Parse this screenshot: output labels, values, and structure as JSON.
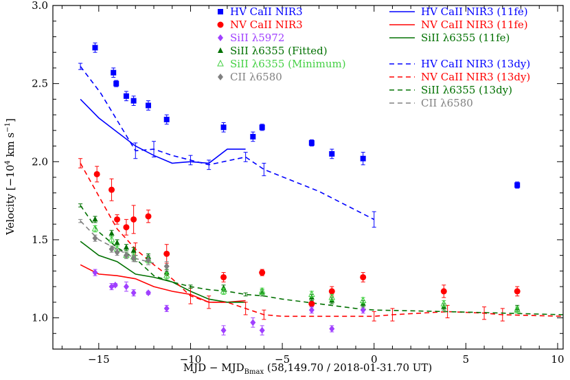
{
  "chart_data": {
    "type": "scatter",
    "xlabel": "MJD − MJD",
    "xlabel_sub": "Bmax",
    "xlabel_tail": " (58,149.70 / 2018-01-31.70 UT)",
    "ylabel": "Velocity [−10",
    "ylabel_sup": "4",
    "ylabel_tail": " km s",
    "ylabel_sup2": "−1",
    "ylabel_close": "]",
    "xlim": [
      -17.5,
      10.3
    ],
    "ylim": [
      0.8,
      3.0
    ],
    "xticks": [
      -15,
      -10,
      -5,
      0,
      5,
      10
    ],
    "xtick_labels": [
      "−15",
      "−10",
      "−5",
      "0",
      "5",
      "10"
    ],
    "yticks": [
      1.0,
      1.5,
      2.0,
      2.5,
      3.0
    ],
    "ytick_labels": [
      "1.0",
      "1.5",
      "2.0",
      "2.5",
      "3.0"
    ],
    "grid": false,
    "legend_placement": "top",
    "points": [
      {
        "name": "HV CaII NIR3",
        "legend": "HV CaII NIR3",
        "color": "#0000ff",
        "marker": "square",
        "data": [
          [
            -15.2,
            2.73,
            0.03
          ],
          [
            -14.2,
            2.57,
            0.03
          ],
          [
            -14.05,
            2.5,
            0.02
          ],
          [
            -13.5,
            2.42,
            0.03
          ],
          [
            -13.1,
            2.39,
            0.03
          ],
          [
            -12.3,
            2.36,
            0.03
          ],
          [
            -11.3,
            2.27,
            0.03
          ],
          [
            -8.2,
            2.22,
            0.03
          ],
          [
            -6.6,
            2.16,
            0.03
          ],
          [
            -6.1,
            2.22,
            0.02
          ],
          [
            -3.4,
            2.12,
            0.02
          ],
          [
            -2.3,
            2.05,
            0.03
          ],
          [
            -0.6,
            2.02,
            0.04
          ],
          [
            7.8,
            1.85,
            0.02
          ]
        ]
      },
      {
        "name": "NV CaII NIR3",
        "legend": "NV CaII NIR3",
        "color": "#ff0000",
        "marker": "circle",
        "data": [
          [
            -15.1,
            1.92,
            0.05
          ],
          [
            -14.3,
            1.82,
            0.07
          ],
          [
            -14.0,
            1.63,
            0.03
          ],
          [
            -13.5,
            1.58,
            0.05
          ],
          [
            -13.1,
            1.63,
            0.09
          ],
          [
            -12.3,
            1.65,
            0.04
          ],
          [
            -11.3,
            1.41,
            0.06
          ],
          [
            -8.2,
            1.26,
            0.03
          ],
          [
            -6.1,
            1.29,
            0.02
          ],
          [
            -3.4,
            1.09,
            0.02
          ],
          [
            -2.3,
            1.17,
            0.03
          ],
          [
            -0.6,
            1.26,
            0.03
          ],
          [
            3.8,
            1.17,
            0.04
          ],
          [
            7.8,
            1.17,
            0.03
          ]
        ]
      },
      {
        "name": "SiII λ5972",
        "legend": "SiII λ5972",
        "color": "#a040ff",
        "marker": "diamond",
        "data": [
          [
            -15.2,
            1.29,
            0.02
          ],
          [
            -14.3,
            1.2,
            0.02
          ],
          [
            -14.1,
            1.21,
            0.01
          ],
          [
            -13.5,
            1.2,
            0.03
          ],
          [
            -13.1,
            1.16,
            0.02
          ],
          [
            -12.3,
            1.16,
            0.01
          ],
          [
            -11.3,
            1.06,
            0.02
          ],
          [
            -8.2,
            0.92,
            0.03
          ],
          [
            -6.6,
            0.97,
            0.03
          ],
          [
            -6.1,
            0.92,
            0.03
          ],
          [
            -3.4,
            1.05,
            0.02
          ],
          [
            -2.3,
            0.93,
            0.02
          ],
          [
            -0.6,
            1.05,
            0.02
          ]
        ]
      },
      {
        "name": "SiII λ6355 (Fitted)",
        "legend": "SiII λ6355 (Fitted)",
        "color": "#007000",
        "marker": "triangle",
        "data": [
          [
            -15.2,
            1.63,
            0.02
          ],
          [
            -14.3,
            1.54,
            0.02
          ],
          [
            -14.0,
            1.48,
            0.02
          ],
          [
            -13.5,
            1.45,
            0.02
          ],
          [
            -13.1,
            1.43,
            0.02
          ],
          [
            -12.3,
            1.39,
            0.02
          ],
          [
            -11.3,
            1.29,
            0.02
          ],
          [
            -8.2,
            1.19,
            0.02
          ],
          [
            -6.1,
            1.16,
            0.02
          ],
          [
            -3.4,
            1.13,
            0.02
          ],
          [
            -2.3,
            1.11,
            0.02
          ],
          [
            -0.6,
            1.09,
            0.02
          ],
          [
            3.8,
            1.07,
            0.02
          ],
          [
            7.8,
            1.06,
            0.02
          ]
        ]
      },
      {
        "name": "SiII λ6355 (Minimum)",
        "legend": "SiII λ6355 (Minimum)",
        "color": "#44d044",
        "marker": "triangle-open",
        "data": [
          [
            -15.2,
            1.57,
            0.02
          ],
          [
            -14.3,
            1.5,
            0.02
          ],
          [
            -14.0,
            1.44,
            0.02
          ],
          [
            -13.5,
            1.4,
            0.02
          ],
          [
            -13.1,
            1.39,
            0.02
          ],
          [
            -12.3,
            1.37,
            0.02
          ],
          [
            -11.3,
            1.27,
            0.02
          ],
          [
            -8.2,
            1.17,
            0.02
          ],
          [
            -6.1,
            1.17,
            0.02
          ],
          [
            -3.4,
            1.15,
            0.02
          ],
          [
            -2.3,
            1.13,
            0.02
          ],
          [
            -0.6,
            1.11,
            0.02
          ],
          [
            3.8,
            1.09,
            0.02
          ],
          [
            7.8,
            1.05,
            0.02
          ]
        ]
      },
      {
        "name": "CII λ6580",
        "legend": "CII λ6580",
        "color": "#808080",
        "marker": "diamond",
        "data": [
          [
            -15.2,
            1.51,
            0.02
          ],
          [
            -14.3,
            1.44,
            0.02
          ],
          [
            -14.0,
            1.42,
            0.02
          ],
          [
            -13.5,
            1.4,
            0.02
          ],
          [
            -13.1,
            1.38,
            0.02
          ],
          [
            -12.3,
            1.37,
            0.03
          ],
          [
            -11.3,
            1.33,
            0.03
          ]
        ]
      }
    ],
    "lines": [
      {
        "name": "HV CaII NIR3 (11fe)",
        "legend": "HV CaII NIR3 (11fe)",
        "color": "#0000ff",
        "dash": "solid",
        "data": [
          [
            -16.0,
            2.4
          ],
          [
            -15.0,
            2.28
          ],
          [
            -14.0,
            2.19
          ],
          [
            -13.0,
            2.1
          ],
          [
            -12.0,
            2.04
          ],
          [
            -11.0,
            1.99
          ],
          [
            -10.0,
            2.0
          ],
          [
            -9.0,
            1.99
          ],
          [
            -8.0,
            2.08
          ],
          [
            -7.0,
            2.08
          ]
        ]
      },
      {
        "name": "NV CaII NIR3 (11fe)",
        "legend": "NV CaII NIR3 (11fe)",
        "color": "#ff0000",
        "dash": "solid",
        "data": [
          [
            -16.0,
            1.34
          ],
          [
            -15.0,
            1.28
          ],
          [
            -14.0,
            1.27
          ],
          [
            -13.0,
            1.25
          ],
          [
            -12.0,
            1.2
          ],
          [
            -11.0,
            1.17
          ],
          [
            -10.0,
            1.15
          ],
          [
            -9.0,
            1.1
          ],
          [
            -8.0,
            1.1
          ],
          [
            -7.0,
            1.11
          ]
        ]
      },
      {
        "name": "SiII λ6355 (11fe)",
        "legend": "SiII λ6355 (11fe)",
        "color": "#007000",
        "dash": "solid",
        "data": [
          [
            -16.0,
            1.49
          ],
          [
            -15.0,
            1.4
          ],
          [
            -14.0,
            1.36
          ],
          [
            -13.0,
            1.28
          ],
          [
            -12.0,
            1.26
          ],
          [
            -11.0,
            1.23
          ],
          [
            -10.0,
            1.17
          ],
          [
            -9.0,
            1.12
          ],
          [
            -8.0,
            1.1
          ],
          [
            -7.0,
            1.1
          ]
        ]
      },
      {
        "name": "HV CaII NIR3 (13dy)",
        "legend": "HV CaII NIR3 (13dy)",
        "color": "#0000ff",
        "dash": "dashed",
        "data": [
          [
            -16.0,
            2.61
          ],
          [
            -14.9,
            2.44
          ],
          [
            -13.0,
            2.07
          ],
          [
            -12.0,
            2.08
          ],
          [
            -11.0,
            2.04
          ],
          [
            -10.0,
            2.01
          ],
          [
            -9.0,
            1.98
          ],
          [
            -7.0,
            2.03
          ],
          [
            -6.0,
            1.95
          ],
          [
            -3.0,
            1.81
          ],
          [
            0.0,
            1.63
          ]
        ],
        "error_bars": [
          [
            -16.0,
            2.61,
            0.02
          ],
          [
            -13.0,
            2.07,
            0.05
          ],
          [
            -12.0,
            2.08,
            0.05
          ],
          [
            -10.0,
            2.01,
            0.03
          ],
          [
            -9.0,
            1.98,
            0.03
          ],
          [
            -7.0,
            2.03,
            0.03
          ],
          [
            -6.0,
            1.95,
            0.04
          ],
          [
            0.0,
            1.63,
            0.05
          ]
        ]
      },
      {
        "name": "NV CaII NIR3 (13dy)",
        "legend": "NV CaII NIR3 (13dy)",
        "color": "#ff0000",
        "dash": "dashed",
        "data": [
          [
            -16.0,
            1.99
          ],
          [
            -15.0,
            1.78
          ],
          [
            -14.0,
            1.57
          ],
          [
            -13.0,
            1.44
          ],
          [
            -12.0,
            1.34
          ],
          [
            -11.0,
            1.25
          ],
          [
            -10.0,
            1.14
          ],
          [
            -9.0,
            1.1
          ],
          [
            -8.0,
            1.1
          ],
          [
            -7.0,
            1.06
          ],
          [
            -6.0,
            1.02
          ],
          [
            -5.0,
            1.01
          ],
          [
            0.0,
            1.01
          ],
          [
            1.0,
            1.02
          ],
          [
            4.0,
            1.04
          ],
          [
            6.0,
            1.03
          ],
          [
            7.0,
            1.02
          ],
          [
            10.3,
            1.01
          ]
        ],
        "error_bars": [
          [
            -16.0,
            1.99,
            0.03
          ],
          [
            -13.0,
            1.44,
            0.04
          ],
          [
            -10.0,
            1.14,
            0.05
          ],
          [
            -9.0,
            1.1,
            0.04
          ],
          [
            -7.0,
            1.06,
            0.04
          ],
          [
            -6.0,
            1.02,
            0.03
          ],
          [
            0.0,
            1.01,
            0.03
          ],
          [
            1.0,
            1.02,
            0.04
          ],
          [
            4.0,
            1.04,
            0.04
          ],
          [
            6.0,
            1.03,
            0.04
          ],
          [
            7.0,
            1.02,
            0.04
          ]
        ]
      },
      {
        "name": "SiII λ6355 (13dy)",
        "legend": "SiII λ6355 (13dy)",
        "color": "#007000",
        "dash": "dashed",
        "data": [
          [
            -16.0,
            1.72
          ],
          [
            -15.0,
            1.55
          ],
          [
            -14.0,
            1.45
          ],
          [
            -13.0,
            1.38
          ],
          [
            -12.0,
            1.27
          ],
          [
            -11.0,
            1.23
          ],
          [
            -10.0,
            1.2
          ],
          [
            -9.0,
            1.18
          ],
          [
            -8.0,
            1.17
          ],
          [
            -7.0,
            1.15
          ],
          [
            -6.0,
            1.14
          ],
          [
            -5.0,
            1.12
          ],
          [
            -3.0,
            1.09
          ],
          [
            -1.0,
            1.06
          ],
          [
            0.0,
            1.05
          ],
          [
            4.0,
            1.04
          ],
          [
            10.3,
            1.02
          ]
        ],
        "error_bars": [
          [
            -16.0,
            1.72,
            0.01
          ],
          [
            -13.0,
            1.38,
            0.02
          ],
          [
            -10.0,
            1.2,
            0.01
          ],
          [
            -7.0,
            1.15,
            0.01
          ]
        ]
      },
      {
        "name": "CII λ6580 (13dy)",
        "legend": "CII λ6580",
        "color": "#808080",
        "dash": "dashed",
        "data": [
          [
            -16.0,
            1.62
          ],
          [
            -15.0,
            1.5
          ],
          [
            -14.0,
            1.44
          ],
          [
            -13.0,
            1.38
          ],
          [
            -12.0,
            1.35
          ]
        ],
        "error_bars": [
          [
            -16.0,
            1.62,
            0.01
          ],
          [
            -14.0,
            1.44,
            0.02
          ],
          [
            -13.0,
            1.38,
            0.02
          ]
        ]
      }
    ]
  }
}
